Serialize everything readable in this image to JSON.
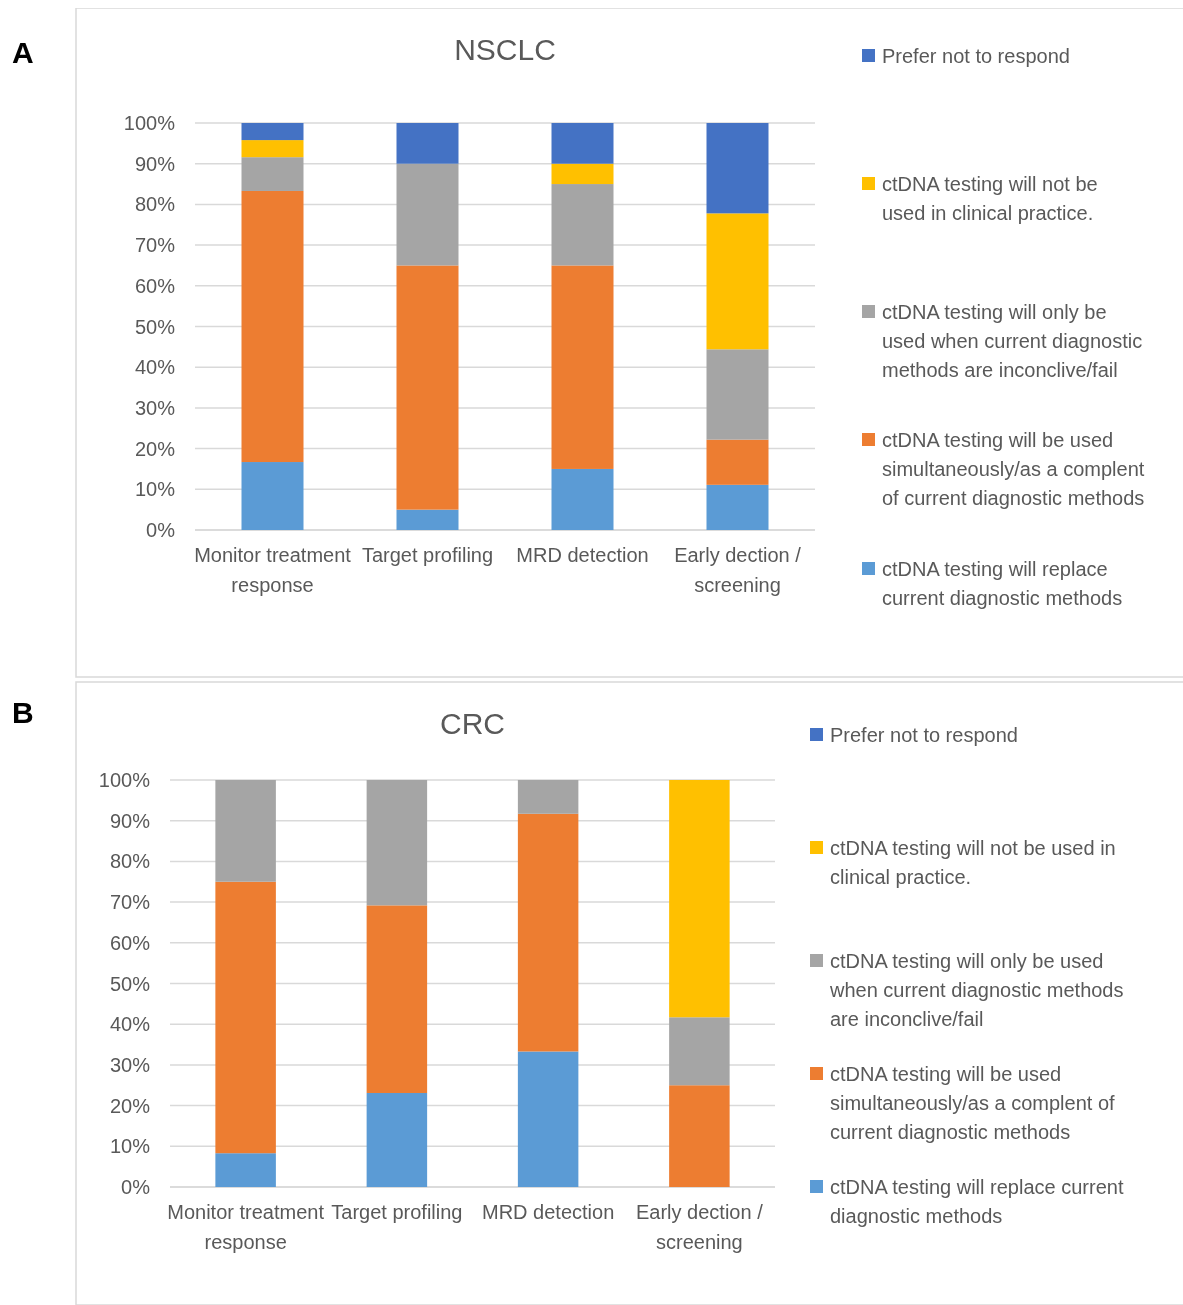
{
  "chart_data": [
    {
      "type": "bar",
      "title": "NSCLC",
      "stacked": true,
      "grid": "y",
      "legend": "right",
      "annotations": [
        "A"
      ],
      "categories": [
        "Monitor treatment response",
        "Target profiling",
        "MRD detection",
        "Early dection / screening"
      ],
      "ylim": [
        0,
        100
      ],
      "yticks": [
        {
          "value": 0,
          "label": "0%"
        },
        {
          "value": 10,
          "label": "10%"
        },
        {
          "value": 20,
          "label": "20%"
        },
        {
          "value": 30,
          "label": "30%"
        },
        {
          "value": 40,
          "label": "40%"
        },
        {
          "value": 50,
          "label": "50%"
        },
        {
          "value": 60,
          "label": "60%"
        },
        {
          "value": 70,
          "label": "70%"
        },
        {
          "value": 80,
          "label": "80%"
        },
        {
          "value": 90,
          "label": "90%"
        },
        {
          "value": 100,
          "label": "100%"
        }
      ],
      "series": [
        {
          "name": "ctDNA testing will replace current diagnostic methods",
          "color": "#5b9bd5",
          "values": [
            16.7,
            5,
            15,
            11.1
          ]
        },
        {
          "name": "ctDNA testing will be used simultaneously/as a complent of current diagnostic methods",
          "color": "#ed7d31",
          "values": [
            66.6,
            60,
            50,
            11.1
          ]
        },
        {
          "name": "ctDNA testing will only be used when current diagnostic methods are inconclive/fail",
          "color": "#a5a5a5",
          "values": [
            8.3,
            25,
            20,
            22.2
          ]
        },
        {
          "name": "ctDNA testing will not be used in clinical practice.",
          "color": "#ffc000",
          "values": [
            4.2,
            0,
            5,
            33.4
          ]
        },
        {
          "name": "Prefer not to respond",
          "color": "#4472c4",
          "values": [
            4.2,
            10,
            10,
            22.2
          ]
        }
      ]
    },
    {
      "type": "bar",
      "title": "CRC",
      "stacked": true,
      "grid": "y",
      "legend": "right",
      "annotations": [
        "B"
      ],
      "categories": [
        "Monitor treatment response",
        "Target profiling",
        "MRD detection",
        "Early dection / screening"
      ],
      "ylim": [
        0,
        100
      ],
      "yticks": [
        {
          "value": 0,
          "label": "0%"
        },
        {
          "value": 10,
          "label": "10%"
        },
        {
          "value": 20,
          "label": "20%"
        },
        {
          "value": 30,
          "label": "30%"
        },
        {
          "value": 40,
          "label": "40%"
        },
        {
          "value": 50,
          "label": "50%"
        },
        {
          "value": 60,
          "label": "60%"
        },
        {
          "value": 70,
          "label": "70%"
        },
        {
          "value": 80,
          "label": "80%"
        },
        {
          "value": 90,
          "label": "90%"
        },
        {
          "value": 100,
          "label": "100%"
        }
      ],
      "series": [
        {
          "name": "ctDNA testing will replace current diagnostic methods",
          "color": "#5b9bd5",
          "values": [
            8.3,
            23.1,
            33.3,
            0
          ]
        },
        {
          "name": "ctDNA testing will be used simultaneously/as a complent of current diagnostic methods",
          "color": "#ed7d31",
          "values": [
            66.7,
            46.1,
            58.4,
            25
          ]
        },
        {
          "name": "ctDNA testing will only be used when current diagnostic methods are inconclive/fail",
          "color": "#a5a5a5",
          "values": [
            25,
            30.8,
            8.3,
            16.7
          ]
        },
        {
          "name": "ctDNA testing will not be used in clinical practice.",
          "color": "#ffc000",
          "values": [
            0,
            0,
            0,
            58.3
          ]
        },
        {
          "name": "Prefer not to respond",
          "color": "#4472c4",
          "values": [
            0,
            0,
            0,
            0
          ]
        }
      ]
    }
  ]
}
